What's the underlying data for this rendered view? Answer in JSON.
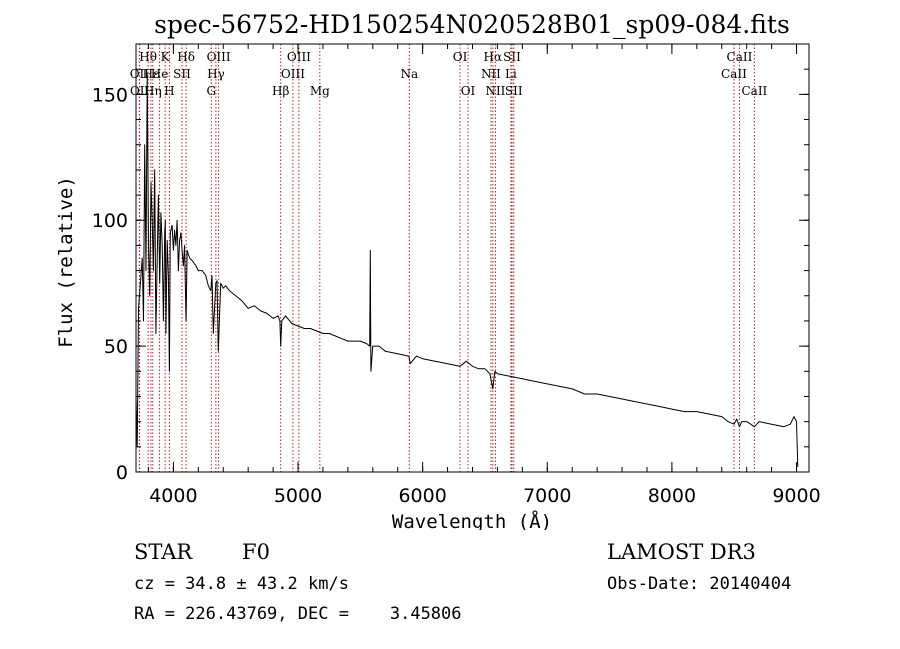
{
  "chart_data": {
    "type": "line",
    "title": "spec-56752-HD150254N020528B01_sp09-084.fits",
    "xlabel": "Wavelength (Å)",
    "ylabel": "Flux (relative)",
    "xlim": [
      3700,
      9100
    ],
    "ylim": [
      0,
      170
    ],
    "xticks": [
      4000,
      5000,
      6000,
      7000,
      8000,
      9000
    ],
    "yticks": [
      0,
      50,
      100,
      150
    ],
    "series": [
      {
        "name": "spectrum",
        "x": [
          3700,
          3710,
          3720,
          3735,
          3750,
          3760,
          3770,
          3780,
          3790,
          3800,
          3810,
          3820,
          3830,
          3840,
          3850,
          3860,
          3870,
          3880,
          3890,
          3900,
          3910,
          3920,
          3930,
          3935,
          3940,
          3950,
          3960,
          3968,
          3975,
          3990,
          4000,
          4010,
          4020,
          4030,
          4040,
          4050,
          4060,
          4070,
          4080,
          4090,
          4100,
          4102,
          4110,
          4130,
          4150,
          4180,
          4200,
          4230,
          4260,
          4280,
          4300,
          4310,
          4320,
          4340,
          4350,
          4360,
          4380,
          4400,
          4420,
          4450,
          4500,
          4550,
          4600,
          4650,
          4700,
          4750,
          4800,
          4840,
          4855,
          4861,
          4870,
          4900,
          4950,
          5000,
          5050,
          5100,
          5150,
          5200,
          5250,
          5300,
          5350,
          5400,
          5450,
          5500,
          5550,
          5575,
          5580,
          5585,
          5600,
          5650,
          5700,
          5800,
          5890,
          5900,
          5950,
          6000,
          6100,
          6200,
          6300,
          6350,
          6400,
          6450,
          6500,
          6540,
          6563,
          6580,
          6600,
          6700,
          6800,
          6900,
          7000,
          7100,
          7200,
          7300,
          7400,
          7500,
          7600,
          7700,
          7800,
          7900,
          8000,
          8100,
          8200,
          8300,
          8400,
          8450,
          8498,
          8520,
          8542,
          8560,
          8600,
          8662,
          8680,
          8700,
          8800,
          8900,
          8950,
          8980,
          9000,
          9010
        ],
        "y": [
          30,
          10,
          65,
          75,
          85,
          60,
          130,
          80,
          158,
          90,
          70,
          115,
          100,
          80,
          120,
          55,
          85,
          110,
          75,
          103,
          90,
          60,
          95,
          100,
          55,
          92,
          78,
          40,
          95,
          98,
          88,
          96,
          90,
          100,
          80,
          92,
          95,
          88,
          82,
          90,
          62,
          60,
          88,
          85,
          84,
          82,
          80,
          80,
          78,
          74,
          72,
          78,
          55,
          75,
          76,
          48,
          75,
          73,
          74,
          72,
          70,
          68,
          65,
          66,
          64,
          63,
          61,
          62,
          60,
          50,
          60,
          62,
          59,
          58,
          57,
          57,
          56,
          55,
          55,
          54,
          53,
          52,
          52,
          52,
          51,
          50,
          88,
          40,
          50,
          50,
          48,
          47,
          46,
          43,
          46,
          45,
          44,
          43,
          42,
          44,
          42,
          41,
          41,
          39,
          33,
          40,
          39,
          38,
          37,
          36,
          35,
          34,
          33,
          31,
          31,
          30,
          29,
          28,
          27,
          26,
          25,
          24,
          24,
          23,
          22,
          20,
          19,
          21,
          18,
          20,
          20,
          18,
          19,
          20,
          19,
          18,
          19,
          22,
          20,
          2
        ]
      }
    ],
    "line_marks": [
      {
        "label": "Hθ",
        "x": 3797,
        "row": 0
      },
      {
        "label": "OII",
        "x": 3727,
        "row": 1
      },
      {
        "label": "OII",
        "x": 3729,
        "row": 2
      },
      {
        "label": "Hε",
        "x": 3820,
        "row": 1
      },
      {
        "label": "Hη",
        "x": 3835,
        "row": 2
      },
      {
        "label": "K",
        "x": 3934,
        "row": 0
      },
      {
        "label": "He",
        "x": 3889,
        "row": 1
      },
      {
        "label": "H",
        "x": 3968,
        "row": 2
      },
      {
        "label": "SII",
        "x": 4069,
        "row": 1
      },
      {
        "label": "Hδ",
        "x": 4102,
        "row": 0
      },
      {
        "label": "OIII",
        "x": 4363,
        "row": 0
      },
      {
        "label": "Hγ",
        "x": 4341,
        "row": 1
      },
      {
        "label": "G",
        "x": 4304,
        "row": 2
      },
      {
        "label": "Hβ",
        "x": 4861,
        "row": 2
      },
      {
        "label": "OIII",
        "x": 4959,
        "row": 1
      },
      {
        "label": "OIII",
        "x": 5007,
        "row": 0
      },
      {
        "label": "Mg",
        "x": 5175,
        "row": 2
      },
      {
        "label": "Na",
        "x": 5893,
        "row": 1
      },
      {
        "label": "OI",
        "x": 6300,
        "row": 0
      },
      {
        "label": "OI",
        "x": 6364,
        "row": 2
      },
      {
        "label": "Hα",
        "x": 6563,
        "row": 0
      },
      {
        "label": "NII",
        "x": 6548,
        "row": 1
      },
      {
        "label": "NII",
        "x": 6584,
        "row": 2
      },
      {
        "label": "SII",
        "x": 6717,
        "row": 0
      },
      {
        "label": "Li",
        "x": 6708,
        "row": 1
      },
      {
        "label": "SII",
        "x": 6731,
        "row": 2
      },
      {
        "label": "CaII",
        "x": 8542,
        "row": 0
      },
      {
        "label": "CaII",
        "x": 8498,
        "row": 1
      },
      {
        "label": "CaII",
        "x": 8662,
        "row": 2
      }
    ],
    "line_mark_color": "#b22222"
  },
  "info": {
    "object_class": "STAR",
    "subclass": "F0",
    "survey": "LAMOST DR3",
    "cz": "cz = 34.8 ± 43.2 km/s",
    "obs_date": "Obs-Date: 20140404",
    "coords": "RA = 226.43769, DEC =    3.45806"
  }
}
